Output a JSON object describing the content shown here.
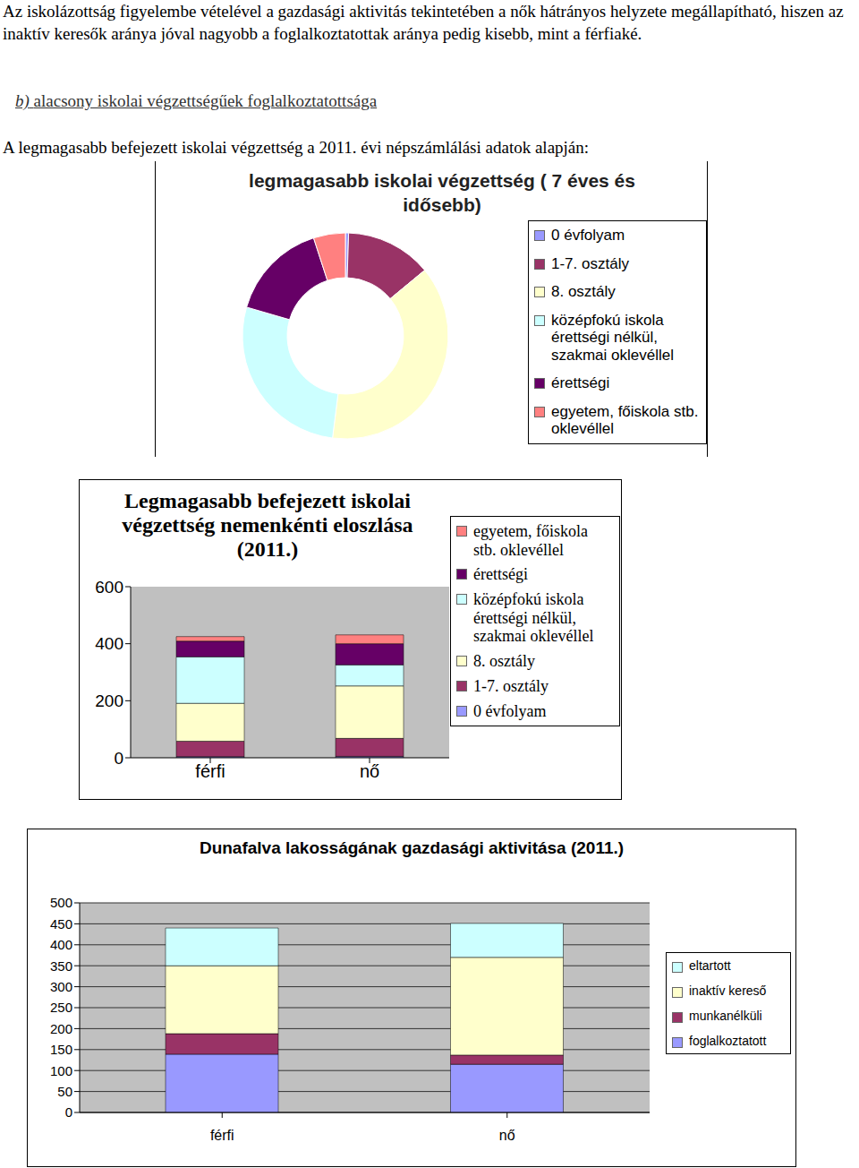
{
  "paragraphs": [
    "Az iskolázottság figyelembe vételével a gazdasági aktivitás tekintetében a nők hátrányos helyzete megállapítható, hiszen az inaktív keresők aránya jóval nagyobb a foglalkoztatottak aránya pedig kisebb, mint a férfiaké."
  ],
  "heading": {
    "marker": "b)",
    "text": "alacsony iskolai végzettségűek foglalkoztatottsága"
  },
  "intro": "A legmagasabb befejezett iskolai végzettség a 2011. évi népszámlálási adatok alapján:",
  "chart_data": [
    {
      "type": "pie",
      "title": "legmagasabb iskolai végzettség ( 7 éves és idősebb)",
      "categories": [
        "0 évfolyam",
        "1-7. osztály",
        "8. osztály",
        "középfokú iskola érettségi nélkül, szakmai oklevéllel",
        "érettségi",
        "egyetem, főiskola stb. oklevéllel"
      ],
      "values": [
        0.5,
        13.5,
        38,
        27.5,
        15.5,
        5
      ],
      "colors": [
        "#9999ff",
        "#993366",
        "#ffffcc",
        "#ccffff",
        "#660066",
        "#ff8080"
      ],
      "legend": "right"
    },
    {
      "type": "bar",
      "title": "Legmagasabb befejezett iskolai végzettség nemenkénti eloszlása (2011.)",
      "categories": [
        "férfi",
        "nő"
      ],
      "series": [
        {
          "name": "0 évfolyam",
          "color": "#9999ff",
          "values": [
            4,
            5
          ]
        },
        {
          "name": "1-7. osztály",
          "color": "#993366",
          "values": [
            54,
            63
          ]
        },
        {
          "name": "8. osztály",
          "color": "#ffffcc",
          "values": [
            133,
            184
          ]
        },
        {
          "name": "középfokú iskola érettségi nélkül, szakmai oklevéllel",
          "color": "#ccffff",
          "values": [
            163,
            74
          ]
        },
        {
          "name": "érettségi",
          "color": "#660066",
          "values": [
            55,
            74
          ]
        },
        {
          "name": "egyetem, főiskola stb. oklevéllel",
          "color": "#ff8080",
          "values": [
            16,
            31
          ]
        }
      ],
      "stacked": true,
      "ylim": [
        0,
        600
      ],
      "yticks": [
        0,
        200,
        400,
        600
      ],
      "grid": false,
      "legend": "right"
    },
    {
      "type": "bar",
      "title": "Dunafalva lakosságának gazdasági aktivitása (2011.)",
      "categories": [
        "férfi",
        "nő"
      ],
      "series": [
        {
          "name": "foglalkoztatott",
          "color": "#9999ff",
          "values": [
            139,
            115
          ]
        },
        {
          "name": "munkanélküli",
          "color": "#993366",
          "values": [
            49,
            22
          ]
        },
        {
          "name": "inaktív kereső",
          "color": "#ffffcc",
          "values": [
            162,
            233
          ]
        },
        {
          "name": "eltartott",
          "color": "#ccffff",
          "values": [
            90,
            81
          ]
        }
      ],
      "stacked": true,
      "ylim": [
        0,
        500
      ],
      "yticks": [
        0,
        50,
        100,
        150,
        200,
        250,
        300,
        350,
        400,
        450,
        500
      ],
      "grid": true,
      "legend": "right"
    }
  ]
}
